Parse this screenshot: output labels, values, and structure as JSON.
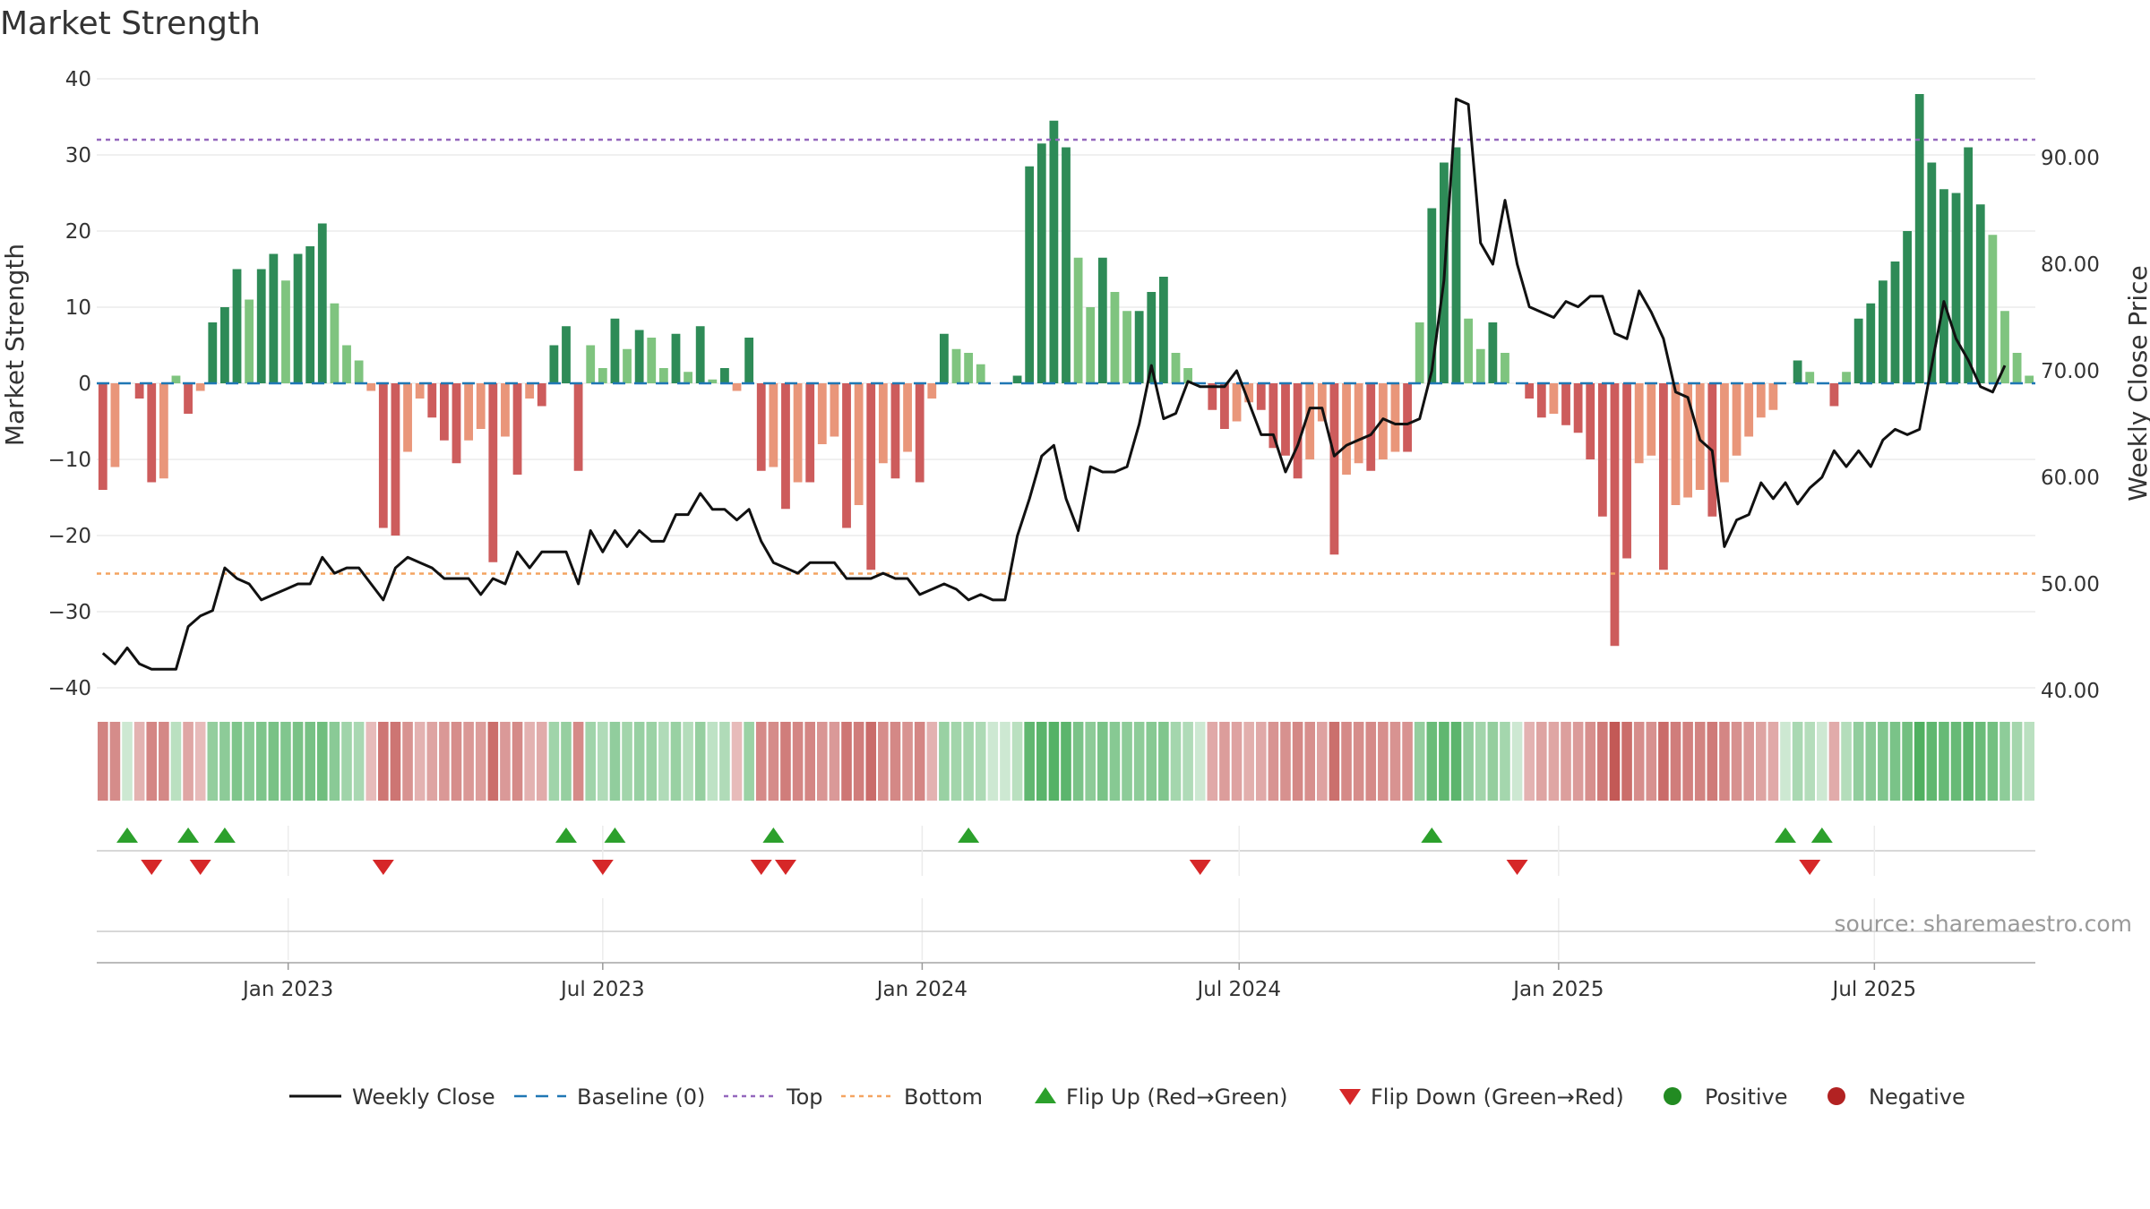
{
  "chart_data": {
    "type": "bar",
    "title": "Market Strength",
    "ylabel": "Market Strength",
    "y2label": "Weekly Close Price",
    "ylim": [
      -40,
      40
    ],
    "y2lim": [
      40,
      97
    ],
    "yticks": [
      "40",
      "30",
      "20",
      "10",
      "0",
      "−10",
      "−20",
      "−30",
      "−40"
    ],
    "y2ticks": [
      "90.00",
      "80.00",
      "70.00",
      "60.00",
      "50.00",
      "40.00"
    ],
    "xticks": [
      "Jan 2023",
      "Jul 2023",
      "Jan 2024",
      "Jul 2024",
      "Jan 2025",
      "Jul 2025"
    ],
    "xtick_weeks": [
      15.2,
      41.0,
      67.2,
      93.2,
      119.4,
      145.3
    ],
    "top": 32,
    "bottom": -25,
    "source": "source: sharemaestro.com",
    "colors": {
      "strong_pos": "#2e8b57",
      "weak_pos": "#7fc47f",
      "strong_neg": "#cd5c5c",
      "weak_neg": "#e9967a",
      "line": "#111111",
      "baseline": "#1f77b4",
      "top": "#9467bd",
      "bottom": "#f4a460",
      "flip_up": "#2ca02c",
      "flip_down": "#d62728",
      "positive": "#228b22",
      "negative": "#b22222"
    },
    "strength": [
      -14,
      -11,
      0,
      -2,
      -13,
      -12.5,
      1,
      -4,
      -1,
      8,
      10,
      15,
      11,
      15,
      17,
      13.5,
      17,
      18,
      21,
      10.5,
      5,
      3,
      -1,
      -19,
      -20,
      -9,
      -2,
      -4.5,
      -7.5,
      -10.5,
      -7.5,
      -6,
      -23.5,
      -7,
      -12,
      -2,
      -3,
      5,
      7.5,
      -11.5,
      5,
      2,
      8.5,
      4.5,
      7,
      6,
      2,
      6.5,
      1.5,
      7.5,
      0.5,
      2,
      -1,
      6,
      -11.5,
      -11,
      -16.5,
      -13,
      -13,
      -8,
      -7,
      -19,
      -16,
      -24.5,
      -10.5,
      -12.5,
      -9,
      -13,
      -2,
      6.5,
      4.5,
      4,
      2.5,
      0,
      0,
      1,
      28.5,
      31.5,
      34.5,
      31,
      16.5,
      10,
      16.5,
      12,
      9.5,
      9.5,
      12,
      14,
      4,
      2,
      0,
      -3.5,
      -6,
      -5,
      -2.5,
      -3.5,
      -8.5,
      -9.5,
      -12.5,
      -10,
      -5,
      -22.5,
      -12,
      -10.5,
      -11.5,
      -10,
      -9,
      -9,
      8,
      23,
      29,
      31,
      8.5,
      4.5,
      8,
      4,
      0,
      -2,
      -4.5,
      -4,
      -5.5,
      -6.5,
      -10,
      -17.5,
      -34.5,
      -23,
      -10.5,
      -9.5,
      -24.5,
      -16,
      -15,
      -14,
      -17.5,
      -13,
      -9.5,
      -7,
      -4.5,
      -3.5,
      0,
      3,
      1.5,
      0,
      -3,
      1.5,
      8.5,
      10.5,
      13.5,
      16,
      20,
      38,
      29,
      25.5,
      25,
      31,
      23.5,
      19.5,
      9.5,
      4,
      1
    ],
    "price": [
      43.5,
      42.5,
      44,
      42.5,
      42,
      42,
      42,
      46,
      47,
      47.5,
      51.5,
      50.5,
      50,
      48.5,
      49,
      49.5,
      50,
      50,
      52.5,
      51,
      51.5,
      51.5,
      50,
      48.5,
      51.5,
      52.5,
      52,
      51.5,
      50.5,
      50.5,
      50.5,
      49,
      50.5,
      50,
      53,
      51.5,
      53,
      53,
      53,
      50,
      55,
      53,
      55,
      53.5,
      55,
      54,
      54,
      56.5,
      56.5,
      58.5,
      57,
      57,
      56,
      57,
      54,
      52,
      51.5,
      51,
      52,
      52,
      52,
      50.5,
      50.5,
      50.5,
      51,
      50.5,
      50.5,
      49,
      49.5,
      50,
      49.5,
      48.5,
      49,
      48.5,
      48.5,
      54.5,
      58,
      62,
      63,
      58,
      55,
      61,
      60.5,
      60.5,
      61,
      65,
      70.5,
      65.5,
      66,
      69,
      68.5,
      68.5,
      68.5,
      70,
      67,
      64,
      64,
      60.5,
      63,
      66.5,
      66.5,
      62,
      63,
      63.5,
      64,
      65.5,
      65,
      65,
      65.5,
      70,
      78.5,
      95.5,
      95,
      82,
      80,
      86,
      80,
      76,
      75.5,
      75,
      76.5,
      76,
      77,
      77,
      73.5,
      73,
      77.5,
      75.5,
      73,
      68,
      67.5,
      63.5,
      62.5,
      53.5,
      56,
      56.5,
      59.5,
      58,
      59.5,
      57.5,
      59,
      60,
      62.5,
      61,
      62.5,
      61,
      63.5,
      64.5,
      64,
      64.5,
      70.5,
      76.5,
      73,
      71,
      68.5,
      68,
      70.5
    ],
    "flip_up_weeks": [
      2,
      7,
      10,
      38,
      42,
      55,
      71,
      109,
      138,
      141
    ],
    "flip_down_weeks": [
      4,
      8,
      23,
      41,
      54,
      56,
      90,
      116,
      140
    ]
  },
  "legend": [
    {
      "key": "line",
      "label": "Weekly Close"
    },
    {
      "key": "baseline",
      "label": "Baseline (0)"
    },
    {
      "key": "top",
      "label": "Top"
    },
    {
      "key": "bottom",
      "label": "Bottom"
    },
    {
      "key": "flip_up",
      "label": "Flip Up (Red→Green)"
    },
    {
      "key": "flip_down",
      "label": "Flip Down (Green→Red)"
    },
    {
      "key": "positive",
      "label": "Positive"
    },
    {
      "key": "negative",
      "label": "Negative"
    }
  ]
}
